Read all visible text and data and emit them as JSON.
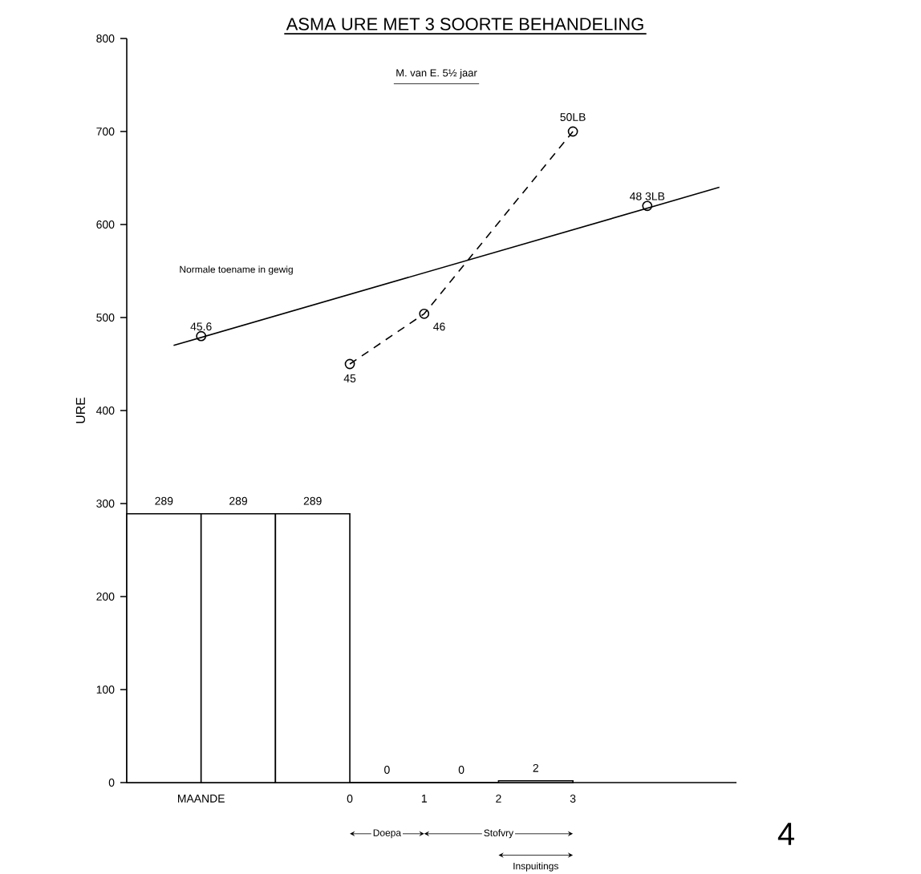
{
  "chart_data": {
    "type": "bar",
    "title": "ASMA URE MET 3 SOORTE BEHANDELING",
    "subtitle": "M. van E.  5½ jaar",
    "ylabel": "URE",
    "series": [
      {
        "color": "#000000",
        "x": [
          -2.5,
          -1.5,
          -0.5,
          0.5,
          1.5,
          2.5
        ],
        "values": [
          289,
          289,
          289,
          0,
          0,
          2
        ],
        "value_labels": [
          "289",
          "289",
          "289",
          "0",
          "0",
          "2"
        ]
      },
      {
        "type": "line",
        "name": "Normale toename in gewig",
        "color": "#000000",
        "x": [
          -2.37,
          4.97
        ],
        "values": [
          470,
          640
        ],
        "line_style": "solid",
        "marker": "none"
      },
      {
        "type": "scatter",
        "color": "#000000",
        "x": [
          -2,
          4
        ],
        "values": [
          480,
          620
        ],
        "marker": "circle"
      },
      {
        "type": "line",
        "color": "#000000",
        "x": [
          0,
          1,
          3
        ],
        "values": [
          450,
          504,
          700
        ],
        "line_style": "dashed",
        "marker": "circle"
      }
    ],
    "xlim": [
      -3,
      5.2
    ],
    "ylim": [
      0,
      800
    ],
    "xticks": [
      {
        "value": -2,
        "label": "MAANDE"
      },
      0,
      1,
      2,
      3
    ],
    "yticks": [
      0,
      100,
      200,
      300,
      400,
      500,
      600,
      700,
      800
    ],
    "annotations": [
      {
        "text": "45.6",
        "x": -2,
        "y": 480
      },
      {
        "text": "48 3LB",
        "x": 4,
        "y": 620
      },
      {
        "text": "45",
        "x": 0,
        "y": 450
      },
      {
        "text": "46",
        "x": 1,
        "y": 504
      },
      {
        "text": "50LB",
        "x": 3,
        "y": 700
      },
      "Doepa",
      "Stofvry",
      "Inspuitings",
      "4"
    ]
  }
}
